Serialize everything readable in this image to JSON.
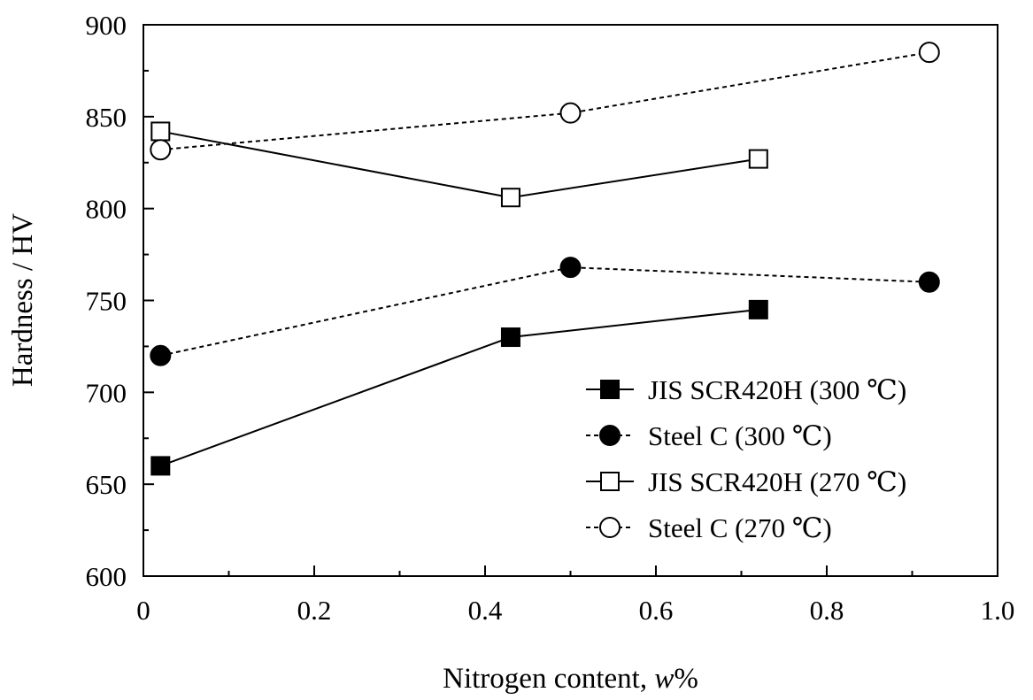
{
  "chart_data": {
    "type": "line",
    "xlabel": "Nitrogen content, w%",
    "ylabel": "Hardness / HV",
    "xlim": [
      0,
      1.0
    ],
    "ylim": [
      600,
      900
    ],
    "xticks": [
      "0",
      "0.2",
      "0.4",
      "0.6",
      "0.8",
      "1.0"
    ],
    "yticks": [
      "600",
      "650",
      "700",
      "750",
      "800",
      "850",
      "900"
    ],
    "legend_position": "bottom-right",
    "grid": false,
    "series": [
      {
        "name": "JIS SCR420H (300 ℃)",
        "marker": "square-filled",
        "line": "solid",
        "x": [
          0.02,
          0.43,
          0.72
        ],
        "y": [
          660,
          730,
          745
        ]
      },
      {
        "name": "Steel C (300 ℃)",
        "marker": "circle-filled",
        "line": "dashed",
        "x": [
          0.02,
          0.5,
          0.92
        ],
        "y": [
          720,
          768,
          760
        ]
      },
      {
        "name": "JIS SCR420H (270 ℃)",
        "marker": "square-open",
        "line": "solid",
        "x": [
          0.02,
          0.43,
          0.72
        ],
        "y": [
          842,
          806,
          827
        ]
      },
      {
        "name": "Steel C (270 ℃)",
        "marker": "circle-open",
        "line": "dashed",
        "x": [
          0.02,
          0.5,
          0.92
        ],
        "y": [
          832,
          852,
          885
        ]
      }
    ]
  }
}
